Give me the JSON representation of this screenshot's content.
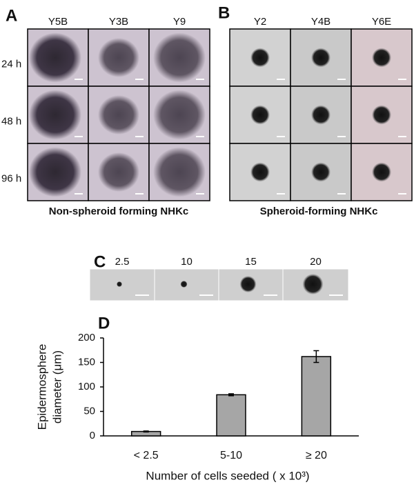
{
  "panels": {
    "A": {
      "label": "A",
      "columns": [
        "Y5B",
        "Y3B",
        "Y9"
      ],
      "rows": [
        "24 h",
        "48 h",
        "96 h"
      ],
      "caption": "Non-spheroid forming NHKc"
    },
    "B": {
      "label": "B",
      "columns": [
        "Y2",
        "Y4B",
        "Y6E"
      ],
      "caption": "Spheroid-forming NHKc"
    },
    "C": {
      "label": "C",
      "columns": [
        "2.5",
        "10",
        "15",
        "20"
      ]
    },
    "D": {
      "label": "D"
    }
  },
  "chart_data": {
    "type": "bar",
    "categories": [
      "< 2.5",
      "5-10",
      "≥ 20"
    ],
    "values": [
      9,
      84,
      162
    ],
    "errors": [
      1,
      2,
      12
    ],
    "color": "#a6a6a6",
    "ylabel": [
      "Epidermosphere",
      "diameter (μm)"
    ],
    "xlabel": "Number of cells seeded ( x 10³)",
    "ylim": [
      0,
      200
    ],
    "yticks": [
      0,
      50,
      100,
      150,
      200
    ],
    "grid": false
  }
}
